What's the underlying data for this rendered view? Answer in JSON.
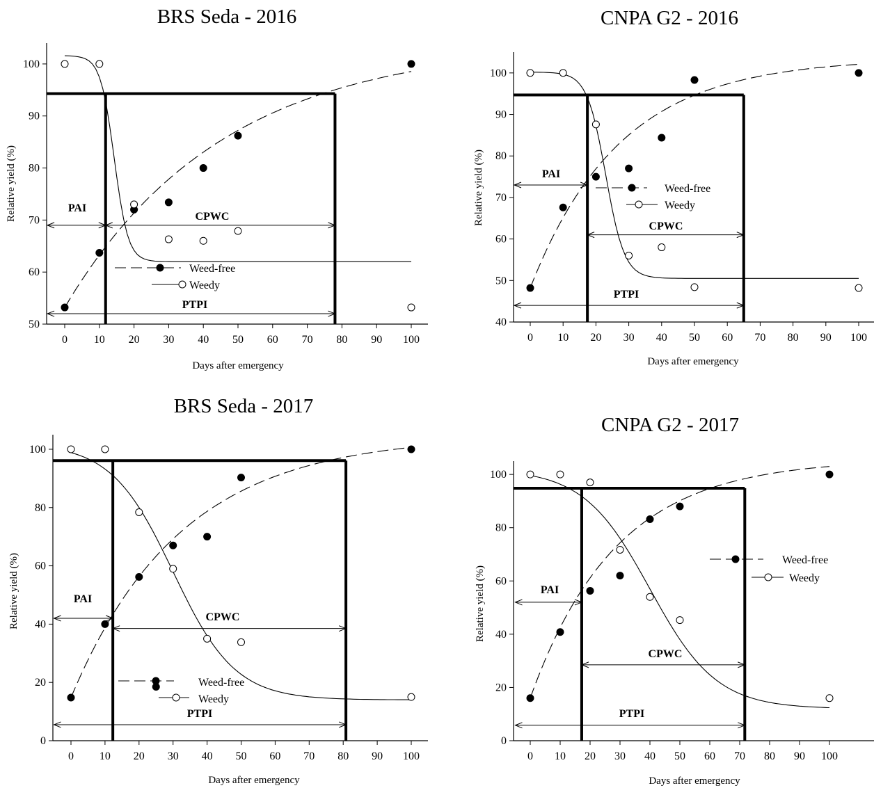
{
  "chart_data": [
    {
      "type": "scatter",
      "title": "BRS Seda - 2016",
      "xlabel": "Days after emergency",
      "ylabel": "Relative yield (%)",
      "xlim": [
        -5,
        105
      ],
      "ylim": [
        50,
        104
      ],
      "x_ticks": [
        0,
        10,
        20,
        30,
        40,
        50,
        60,
        70,
        80,
        90,
        100
      ],
      "y_ticks": [
        50,
        60,
        70,
        80,
        90,
        100
      ],
      "grid": false,
      "legend_position": "center",
      "series": [
        {
          "name": "Weed-free",
          "marker": "filled-circle",
          "line": "dashed",
          "x": [
            0,
            10,
            20,
            30,
            40,
            50,
            100
          ],
          "y": [
            53.2,
            63.7,
            72,
            73.4,
            80,
            86.2,
            100
          ],
          "curve": {
            "model": "exponential-rise",
            "y0": 53.2,
            "ymax": 104.2,
            "k": 0.022
          }
        },
        {
          "name": "Weedy",
          "marker": "open-circle",
          "line": "solid",
          "x": [
            0,
            10,
            20,
            30,
            40,
            50,
            100
          ],
          "y": [
            100,
            100,
            73,
            66.3,
            66,
            67.9,
            53.2
          ],
          "curve": {
            "model": "logistic-decline",
            "top": 101.6,
            "bottom": 62,
            "x50": 14.3,
            "slope": 0.5
          }
        }
      ],
      "threshold_y": 94.3,
      "critical_points": [
        11.8,
        78
      ],
      "annotations": [
        {
          "label": "PAI",
          "from": -5,
          "to": 11.8,
          "y": 69
        },
        {
          "label": "CPWC",
          "from": 11.8,
          "to": 78,
          "y": 69
        },
        {
          "label": "PTPI",
          "from": -5,
          "to": 78,
          "y": 52
        }
      ]
    },
    {
      "type": "scatter",
      "title": "CNPA G2 - 2016",
      "xlabel": "Days after emergency",
      "ylabel": "Relative yield (%)",
      "xlim": [
        -5,
        105
      ],
      "ylim": [
        40,
        105
      ],
      "x_ticks": [
        0,
        10,
        20,
        30,
        40,
        50,
        60,
        70,
        80,
        90,
        100
      ],
      "y_ticks": [
        40,
        50,
        60,
        70,
        80,
        90,
        100
      ],
      "grid": false,
      "legend_position": "center-right",
      "series": [
        {
          "name": "Weed-free",
          "marker": "filled-circle",
          "line": "dashed",
          "x": [
            0,
            10,
            20,
            30,
            40,
            50,
            100
          ],
          "y": [
            48.2,
            67.6,
            75,
            77,
            84.4,
            98.3,
            100
          ],
          "curve": {
            "model": "exponential-rise",
            "y0": 48.2,
            "ymax": 103.5,
            "k": 0.0366
          }
        },
        {
          "name": "Weedy",
          "marker": "open-circle",
          "line": "solid",
          "x": [
            0,
            10,
            20,
            30,
            40,
            50,
            100
          ],
          "y": [
            100,
            100,
            87.6,
            56,
            58,
            48.4,
            48.2
          ],
          "curve": {
            "model": "logistic-decline",
            "top": 100.2,
            "bottom": 50.5,
            "x50": 23,
            "slope": 0.35
          }
        }
      ],
      "threshold_y": 94.7,
      "critical_points": [
        17.4,
        65
      ],
      "annotations": [
        {
          "label": "PAI",
          "from": -5,
          "to": 17.4,
          "y": 73
        },
        {
          "label": "CPWC",
          "from": 17.4,
          "to": 65,
          "y": 61
        },
        {
          "label": "PTPI",
          "from": -5,
          "to": 65,
          "y": 44
        }
      ]
    },
    {
      "type": "scatter",
      "title": "BRS Seda - 2017",
      "xlabel": "Days after emergency",
      "ylabel": "Relative yield (%)",
      "xlim": [
        -5,
        105
      ],
      "ylim": [
        0,
        105
      ],
      "x_ticks": [
        0,
        10,
        20,
        30,
        40,
        50,
        60,
        70,
        80,
        90,
        100
      ],
      "y_ticks": [
        0,
        20,
        40,
        60,
        80,
        100
      ],
      "grid": false,
      "legend_position": "bottom-center",
      "series": [
        {
          "name": "Weed-free",
          "marker": "filled-circle",
          "line": "dashed",
          "x": [
            0,
            10,
            20,
            25,
            30,
            40,
            50,
            100
          ],
          "y": [
            14.8,
            40,
            56.2,
            18.5,
            67,
            70,
            90.3,
            100
          ],
          "curve": {
            "model": "exponential-rise",
            "y0": 14.8,
            "ymax": 104.7,
            "k": 0.031
          }
        },
        {
          "name": "Weedy",
          "marker": "open-circle",
          "line": "solid",
          "x": [
            0,
            10,
            20,
            30,
            40,
            50,
            100
          ],
          "y": [
            100,
            100,
            78.4,
            59,
            35,
            33.8,
            15
          ],
          "curve": {
            "model": "logistic-decline",
            "top": 102,
            "bottom": 14,
            "x50": 30,
            "slope": 0.11
          }
        }
      ],
      "threshold_y": 96.1,
      "critical_points": [
        12.3,
        80.8
      ],
      "annotations": [
        {
          "label": "PAI",
          "from": -5,
          "to": 12.3,
          "y": 42
        },
        {
          "label": "CPWC",
          "from": 12.3,
          "to": 80.8,
          "y": 38.5
        },
        {
          "label": "PTPI",
          "from": -5,
          "to": 80.8,
          "y": 5.5
        }
      ]
    },
    {
      "type": "scatter",
      "title": "CNPA G2 - 2017",
      "xlabel": "Days after emergency",
      "ylabel": "Relative yield (%)",
      "xlim": [
        -5,
        105
      ],
      "ylim": [
        0,
        105
      ],
      "x_ticks": [
        0,
        10,
        20,
        30,
        40,
        50,
        60,
        70,
        80,
        90,
        100
      ],
      "y_ticks": [
        0,
        20,
        40,
        60,
        80,
        100
      ],
      "grid": false,
      "legend_position": "right",
      "series": [
        {
          "name": "Weed-free",
          "marker": "filled-circle",
          "line": "dashed",
          "x": [
            0,
            10,
            20,
            30,
            40,
            50,
            100
          ],
          "y": [
            16,
            40.8,
            56.3,
            62,
            83.2,
            88,
            100
          ],
          "curve": {
            "model": "exponential-rise",
            "y0": 16,
            "ymax": 105.7,
            "k": 0.035
          }
        },
        {
          "name": "Weedy",
          "marker": "open-circle",
          "line": "solid",
          "x": [
            0,
            10,
            20,
            30,
            40,
            50,
            100
          ],
          "y": [
            100,
            100,
            97,
            71.7,
            54,
            45.3,
            16
          ],
          "curve": {
            "model": "logistic-decline",
            "top": 102,
            "bottom": 12,
            "x50": 40,
            "slope": 0.09
          }
        }
      ],
      "threshold_y": 94.8,
      "critical_points": [
        17.2,
        71.7
      ],
      "annotations": [
        {
          "label": "PAI",
          "from": -5,
          "to": 17.2,
          "y": 52
        },
        {
          "label": "CPWC",
          "from": 17.2,
          "to": 71.7,
          "y": 28.5
        },
        {
          "label": "PTPI",
          "from": -5,
          "to": 71.7,
          "y": 5.8
        }
      ]
    }
  ]
}
